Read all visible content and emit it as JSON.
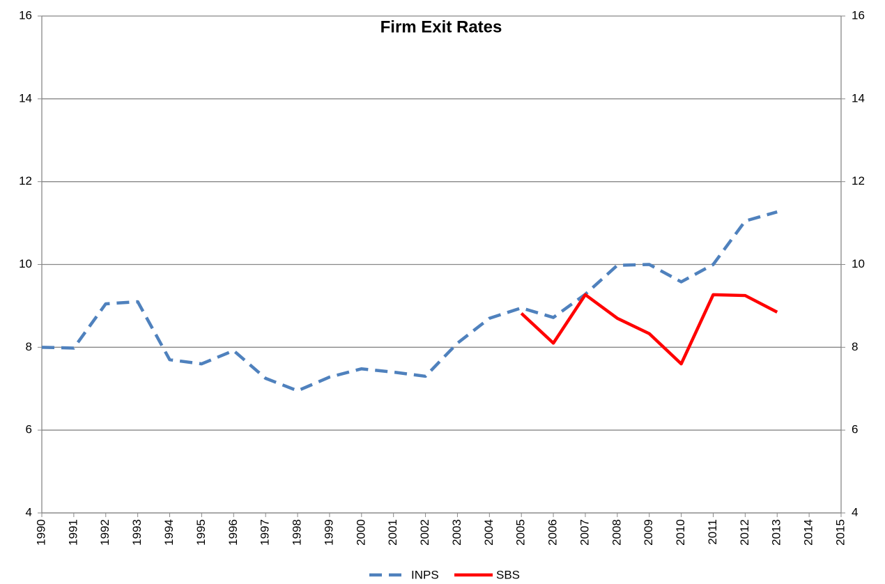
{
  "chart_data": {
    "type": "line",
    "title": "Firm Exit Rates",
    "x": [
      1990,
      1991,
      1992,
      1993,
      1994,
      1995,
      1996,
      1997,
      1998,
      1999,
      2000,
      2001,
      2002,
      2003,
      2004,
      2005,
      2006,
      2007,
      2008,
      2009,
      2010,
      2011,
      2012,
      2013
    ],
    "series": [
      {
        "name": "INPS",
        "color": "#4f81bd",
        "dashed": true,
        "values": [
          8.0,
          7.98,
          9.05,
          9.1,
          7.7,
          7.6,
          7.92,
          7.25,
          6.95,
          7.28,
          7.48,
          7.4,
          7.3,
          8.1,
          8.7,
          8.95,
          8.72,
          9.28,
          9.98,
          10.0,
          9.58,
          10.0,
          11.05,
          11.27
        ]
      },
      {
        "name": "SBS",
        "color": "#ff0000",
        "dashed": false,
        "values": [
          null,
          null,
          null,
          null,
          null,
          null,
          null,
          null,
          null,
          null,
          null,
          null,
          null,
          null,
          null,
          8.82,
          8.1,
          9.27,
          8.7,
          8.33,
          7.6,
          9.27,
          9.25,
          8.85
        ]
      }
    ],
    "xlim": [
      1990,
      2015
    ],
    "xticks": [
      1990,
      1991,
      1992,
      1993,
      1994,
      1995,
      1996,
      1997,
      1998,
      1999,
      2000,
      2001,
      2002,
      2003,
      2004,
      2005,
      2006,
      2007,
      2008,
      2009,
      2010,
      2011,
      2012,
      2013,
      2014,
      2015
    ],
    "ylim": [
      4,
      16
    ],
    "yticks": [
      4,
      6,
      8,
      10,
      12,
      14,
      16
    ],
    "y2lim": [
      4,
      16
    ],
    "y2ticks": [
      4,
      6,
      8,
      10,
      12,
      14,
      16
    ],
    "grid": true,
    "legend": "bottom"
  }
}
